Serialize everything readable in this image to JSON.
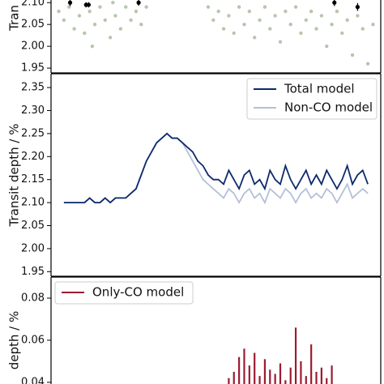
{
  "chart_data": [
    {
      "type": "scatter",
      "y_label": "Tran",
      "ylim": [
        1.939,
        2.106
      ],
      "yticks": [
        {
          "value": 2.1,
          "label": "2.10"
        },
        2.05,
        {
          "value": 2.0,
          "label": "2.00"
        },
        1.95
      ],
      "xlim": [
        -2.5,
        61.5
      ],
      "series": [
        {
          "color": "#b7c6ad",
          "x": [
            -1,
            0,
            1,
            2,
            3,
            4,
            5,
            6,
            7,
            8,
            9,
            10,
            11,
            12,
            13,
            14,
            15,
            16,
            5.5,
            9.5,
            28,
            29,
            30,
            31,
            32,
            33,
            34,
            35,
            36,
            37,
            38,
            39,
            40,
            41,
            42,
            43,
            44,
            45,
            46,
            47,
            48,
            49,
            50,
            51,
            52,
            53,
            54,
            55,
            56,
            57,
            58,
            59,
            60
          ],
          "values": [
            2.08,
            2.06,
            2.09,
            2.04,
            2.07,
            2.03,
            2.08,
            2.05,
            2.09,
            2.06,
            2.02,
            2.07,
            2.04,
            2.09,
            2.06,
            2.08,
            2.05,
            2.09,
            2.0,
            2.1,
            2.09,
            2.06,
            2.08,
            2.04,
            2.07,
            2.03,
            2.09,
            2.05,
            2.08,
            2.02,
            2.06,
            2.09,
            2.04,
            2.07,
            2.01,
            2.08,
            2.05,
            2.09,
            2.03,
            2.06,
            2.08,
            2.04,
            2.07,
            2.0,
            2.05,
            2.08,
            2.03,
            2.06,
            1.98,
            2.07,
            2.04,
            1.96,
            2.05
          ]
        },
        {
          "color": "#000000",
          "x": [
            1.2,
            4.3,
            4.8,
            14.5,
            52.5,
            57
          ],
          "values": [
            2.1,
            2.095,
            2.095,
            2.1,
            2.1,
            2.09
          ],
          "errors": [
            0.008,
            0.006,
            0.006,
            0.007,
            0.008,
            0.009
          ]
        }
      ]
    },
    {
      "type": "line",
      "y_label": "Transit depth / %",
      "ylim": [
        1.94,
        2.38
      ],
      "yticks": [
        2.35,
        {
          "value": 2.3,
          "label": "2.30"
        },
        2.25,
        {
          "value": 2.2,
          "label": "2.20"
        },
        2.15,
        {
          "value": 2.1,
          "label": "2.10"
        },
        2.05,
        {
          "value": 2.0,
          "label": "2.00"
        },
        1.95
      ],
      "xlim": [
        -2.5,
        61.5
      ],
      "x": [
        0,
        1,
        2,
        3,
        4,
        5,
        6,
        7,
        8,
        9,
        10,
        11,
        12,
        13,
        14,
        15,
        16,
        17,
        18,
        19,
        20,
        21,
        22,
        23,
        24,
        25,
        26,
        27,
        28,
        29,
        30,
        31,
        32,
        33,
        34,
        35,
        36,
        37,
        38,
        39,
        40,
        41,
        42,
        43,
        44,
        45,
        46,
        47,
        48,
        49,
        50,
        51,
        52,
        53,
        54,
        55,
        56,
        57,
        58,
        59
      ],
      "series": [
        {
          "name": "Total model",
          "color": "#0d2a6b",
          "values": [
            2.1,
            2.1,
            2.1,
            2.1,
            2.1,
            2.11,
            2.1,
            2.1,
            2.11,
            2.1,
            2.11,
            2.11,
            2.11,
            2.12,
            2.13,
            2.16,
            2.19,
            2.21,
            2.23,
            2.24,
            2.25,
            2.24,
            2.24,
            2.23,
            2.22,
            2.21,
            2.19,
            2.18,
            2.16,
            2.15,
            2.15,
            2.14,
            2.17,
            2.15,
            2.13,
            2.16,
            2.17,
            2.14,
            2.15,
            2.13,
            2.17,
            2.15,
            2.14,
            2.18,
            2.15,
            2.13,
            2.15,
            2.17,
            2.14,
            2.16,
            2.14,
            2.17,
            2.15,
            2.13,
            2.15,
            2.18,
            2.14,
            2.16,
            2.17,
            2.14
          ]
        },
        {
          "name": "Non-CO model",
          "color": "#b3c0d8",
          "values": [
            2.1,
            2.1,
            2.1,
            2.1,
            2.1,
            2.11,
            2.1,
            2.1,
            2.11,
            2.1,
            2.11,
            2.11,
            2.11,
            2.12,
            2.13,
            2.16,
            2.19,
            2.21,
            2.23,
            2.24,
            2.25,
            2.24,
            2.24,
            2.23,
            2.21,
            2.19,
            2.17,
            2.15,
            2.14,
            2.13,
            2.12,
            2.11,
            2.13,
            2.12,
            2.1,
            2.12,
            2.13,
            2.11,
            2.12,
            2.1,
            2.13,
            2.12,
            2.11,
            2.13,
            2.12,
            2.1,
            2.12,
            2.13,
            2.11,
            2.12,
            2.11,
            2.13,
            2.12,
            2.1,
            2.12,
            2.14,
            2.11,
            2.12,
            2.13,
            2.12
          ]
        }
      ]
    },
    {
      "type": "bar",
      "y_label": "depth / %",
      "ylim": [
        0.0392,
        0.09
      ],
      "yticks": [
        0.08,
        0.06,
        0.04
      ],
      "xlim": [
        -2.5,
        61.5
      ],
      "x": [
        32,
        33,
        34,
        35,
        36,
        37,
        38,
        39,
        40,
        41,
        42,
        43,
        44,
        45,
        46,
        47,
        48,
        49,
        50,
        51,
        52
      ],
      "series": [
        {
          "name": "Only-CO model",
          "color": "#9b1b30",
          "values": [
            0.042,
            0.045,
            0.052,
            0.056,
            0.048,
            0.054,
            0.043,
            0.051,
            0.046,
            0.044,
            0.049,
            0.041,
            0.047,
            0.066,
            0.05,
            0.043,
            0.058,
            0.045,
            0.047,
            0.042,
            0.048
          ]
        }
      ]
    }
  ]
}
